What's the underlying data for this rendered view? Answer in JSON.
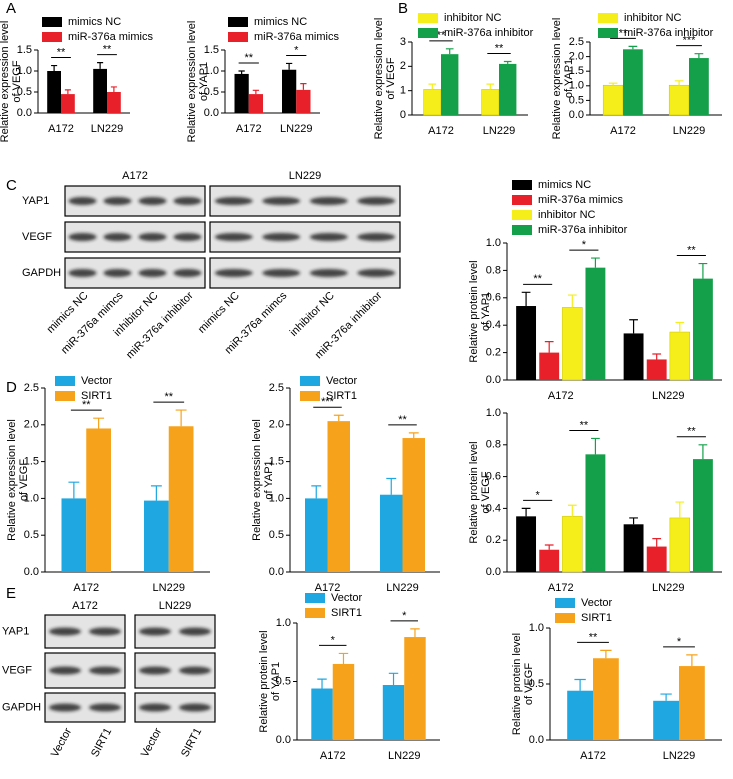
{
  "panels": [
    "A",
    "B",
    "C",
    "D",
    "E"
  ],
  "chart_data": [
    {
      "type": "bar",
      "ylabel": [
        "Relative expression level",
        "of VEGF"
      ],
      "categories": [
        "A172",
        "LN229"
      ],
      "series": [
        {
          "name": "mimics NC",
          "color": "#000000",
          "values": [
            1.0,
            1.05
          ],
          "errors": [
            0.13,
            0.15
          ]
        },
        {
          "name": "miR-376a mimics",
          "color": "#e8202a",
          "values": [
            0.45,
            0.5
          ],
          "errors": [
            0.1,
            0.12
          ]
        }
      ],
      "ylim": [
        0,
        1.5
      ],
      "yticks": [
        {
          "value": 0,
          "label": "0.0"
        },
        {
          "value": 0.5,
          "label": "0.5"
        },
        {
          "value": 1,
          "label": "1.0"
        },
        {
          "value": 1.5,
          "label": "1.5"
        }
      ],
      "significance": [
        [
          "**"
        ],
        [
          "**"
        ]
      ]
    },
    {
      "type": "bar",
      "ylabel": [
        "Relative expression level",
        "of YAP1"
      ],
      "categories": [
        "A172",
        "LN229"
      ],
      "series": [
        {
          "name": "mimics NC",
          "color": "#000000",
          "values": [
            0.93,
            1.03
          ],
          "errors": [
            0.07,
            0.15
          ]
        },
        {
          "name": "miR-376a mimics",
          "color": "#e8202a",
          "values": [
            0.45,
            0.55
          ],
          "errors": [
            0.09,
            0.15
          ]
        }
      ],
      "ylim": [
        0,
        1.5
      ],
      "yticks": [
        {
          "value": 0,
          "label": "0.0"
        },
        {
          "value": 0.5,
          "label": "0.5"
        },
        {
          "value": 1,
          "label": "1.0"
        },
        {
          "value": 1.5,
          "label": "1.5"
        }
      ],
      "significance": [
        [
          "**"
        ],
        [
          "*"
        ]
      ]
    },
    {
      "type": "bar",
      "ylabel": [
        "Relative expression level",
        "of VEGF"
      ],
      "categories": [
        "A172",
        "LN229"
      ],
      "series": [
        {
          "name": "inhibitor NC",
          "color": "#f5ee1b",
          "values": [
            1.05,
            1.05
          ],
          "errors": [
            0.22,
            0.22
          ]
        },
        {
          "name": "miR-376a inhibitor",
          "color": "#14a04a",
          "values": [
            2.5,
            2.1
          ],
          "errors": [
            0.22,
            0.1
          ]
        }
      ],
      "ylim": [
        0,
        3
      ],
      "yticks": [
        0,
        1,
        2,
        3
      ],
      "significance": [
        [
          "**"
        ],
        [
          "**"
        ]
      ]
    },
    {
      "type": "bar",
      "ylabel": [
        "Relative expression level",
        "of YAP1"
      ],
      "categories": [
        "A172",
        "LN229"
      ],
      "series": [
        {
          "name": "inhibitor NC",
          "color": "#f5ee1b",
          "values": [
            1.02,
            1.02
          ],
          "errors": [
            0.07,
            0.15
          ]
        },
        {
          "name": "miR-376a inhibitor",
          "color": "#14a04a",
          "values": [
            2.25,
            1.95
          ],
          "errors": [
            0.1,
            0.15
          ]
        }
      ],
      "ylim": [
        0,
        2.5
      ],
      "yticks": [
        {
          "value": 0,
          "label": "0.0"
        },
        {
          "value": 0.5,
          "label": "0.5"
        },
        {
          "value": 1,
          "label": "1.0"
        },
        {
          "value": 1.5,
          "label": "1.5"
        },
        {
          "value": 2,
          "label": "2.0"
        },
        {
          "value": 2.5,
          "label": "2.5"
        }
      ],
      "significance": [
        [
          "**"
        ],
        [
          "***"
        ]
      ]
    },
    {
      "type": "bar",
      "ylabel": [
        "Relative protein level",
        "of YAP1"
      ],
      "categories": [
        "A172",
        "LN229"
      ],
      "series": [
        {
          "name": "mimics NC",
          "color": "#000000",
          "values": [
            0.54,
            0.34
          ],
          "errors": [
            0.1,
            0.1
          ]
        },
        {
          "name": "miR-376a mimics",
          "color": "#e8202a",
          "values": [
            0.2,
            0.15
          ],
          "errors": [
            0.08,
            0.04
          ]
        },
        {
          "name": "inhibitor NC",
          "color": "#f5ee1b",
          "values": [
            0.53,
            0.35
          ],
          "errors": [
            0.09,
            0.07
          ]
        },
        {
          "name": "miR-376a inhibitor",
          "color": "#14a04a",
          "values": [
            0.82,
            0.74
          ],
          "errors": [
            0.07,
            0.11
          ]
        }
      ],
      "ylim": [
        0,
        1
      ],
      "yticks": [
        {
          "value": 0,
          "label": "0.0"
        },
        {
          "value": 0.2,
          "label": "0.2"
        },
        {
          "value": 0.4,
          "label": "0.4"
        },
        {
          "value": 0.6,
          "label": "0.6"
        },
        {
          "value": 0.8,
          "label": "0.8"
        },
        {
          "value": 1,
          "label": "1.0"
        }
      ],
      "significance": [
        [
          "**",
          "*"
        ],
        [
          null,
          "**"
        ]
      ]
    },
    {
      "type": "bar",
      "ylabel": [
        "Relative expression level",
        "of VEGF"
      ],
      "categories": [
        "A172",
        "LN229"
      ],
      "series": [
        {
          "name": "Vector",
          "color": "#1ea7e1",
          "values": [
            1.0,
            0.97
          ],
          "errors": [
            0.22,
            0.2
          ]
        },
        {
          "name": "SIRT1",
          "color": "#f7a21b",
          "values": [
            1.95,
            1.98
          ],
          "errors": [
            0.14,
            0.22
          ]
        }
      ],
      "ylim": [
        0,
        2.5
      ],
      "yticks": [
        {
          "value": 0,
          "label": "0.0"
        },
        {
          "value": 0.5,
          "label": "0.5"
        },
        {
          "value": 1,
          "label": "1.0"
        },
        {
          "value": 1.5,
          "label": "1.5"
        },
        {
          "value": 2,
          "label": "2.0"
        },
        {
          "value": 2.5,
          "label": "2.5"
        }
      ],
      "significance": [
        [
          "**"
        ],
        [
          "**"
        ]
      ]
    },
    {
      "type": "bar",
      "ylabel": [
        "Relative expression level",
        "of YAP1"
      ],
      "categories": [
        "A172",
        "LN229"
      ],
      "series": [
        {
          "name": "Vector",
          "color": "#1ea7e1",
          "values": [
            1.0,
            1.05
          ],
          "errors": [
            0.17,
            0.22
          ]
        },
        {
          "name": "SIRT1",
          "color": "#f7a21b",
          "values": [
            2.05,
            1.82
          ],
          "errors": [
            0.08,
            0.07
          ]
        }
      ],
      "ylim": [
        0,
        2.5
      ],
      "yticks": [
        {
          "value": 0,
          "label": "0.0"
        },
        {
          "value": 0.5,
          "label": "0.5"
        },
        {
          "value": 1,
          "label": "1.0"
        },
        {
          "value": 1.5,
          "label": "1.5"
        },
        {
          "value": 2,
          "label": "2.0"
        },
        {
          "value": 2.5,
          "label": "2.5"
        }
      ],
      "significance": [
        [
          "***"
        ],
        [
          "**"
        ]
      ]
    },
    {
      "type": "bar",
      "ylabel": [
        "Relative protein level",
        "of VEGF"
      ],
      "categories": [
        "A172",
        "LN229"
      ],
      "series": [
        {
          "name": "mimics NC",
          "color": "#000000",
          "values": [
            0.35,
            0.3
          ],
          "errors": [
            0.05,
            0.04
          ]
        },
        {
          "name": "miR-376a mimics",
          "color": "#e8202a",
          "values": [
            0.14,
            0.16
          ],
          "errors": [
            0.03,
            0.05
          ]
        },
        {
          "name": "inhibitor NC",
          "color": "#f5ee1b",
          "values": [
            0.35,
            0.34
          ],
          "errors": [
            0.07,
            0.1
          ]
        },
        {
          "name": "miR-376a inhibitor",
          "color": "#14a04a",
          "values": [
            0.74,
            0.71
          ],
          "errors": [
            0.1,
            0.09
          ]
        }
      ],
      "ylim": [
        0,
        1
      ],
      "yticks": [
        {
          "value": 0,
          "label": "0.0"
        },
        {
          "value": 0.2,
          "label": "0.2"
        },
        {
          "value": 0.4,
          "label": "0.4"
        },
        {
          "value": 0.6,
          "label": "0.6"
        },
        {
          "value": 0.8,
          "label": "0.8"
        },
        {
          "value": 1,
          "label": "1.0"
        }
      ],
      "significance": [
        [
          "*",
          "**"
        ],
        [
          null,
          "**"
        ]
      ]
    },
    {
      "type": "bar",
      "ylabel": [
        "Relative protein level",
        "of YAP1"
      ],
      "categories": [
        "A172",
        "LN229"
      ],
      "series": [
        {
          "name": "Vector",
          "color": "#1ea7e1",
          "values": [
            0.44,
            0.47
          ],
          "errors": [
            0.08,
            0.1
          ]
        },
        {
          "name": "SIRT1",
          "color": "#f7a21b",
          "values": [
            0.65,
            0.88
          ],
          "errors": [
            0.09,
            0.07
          ]
        }
      ],
      "ylim": [
        0,
        1
      ],
      "yticks": [
        {
          "value": 0,
          "label": "0.0"
        },
        {
          "value": 0.5,
          "label": "0.5"
        },
        {
          "value": 1,
          "label": "1.0"
        }
      ],
      "significance": [
        [
          "*"
        ],
        [
          "*"
        ]
      ]
    },
    {
      "type": "bar",
      "ylabel": [
        "Relative protein level",
        "of VEGF"
      ],
      "categories": [
        "A172",
        "LN229"
      ],
      "series": [
        {
          "name": "Vector",
          "color": "#1ea7e1",
          "values": [
            0.44,
            0.35
          ],
          "errors": [
            0.1,
            0.06
          ]
        },
        {
          "name": "SIRT1",
          "color": "#f7a21b",
          "values": [
            0.73,
            0.66
          ],
          "errors": [
            0.07,
            0.1
          ]
        }
      ],
      "ylim": [
        0,
        1
      ],
      "yticks": [
        {
          "value": 0,
          "label": "0.0"
        },
        {
          "value": 0.5,
          "label": "0.5"
        },
        {
          "value": 1,
          "label": "1.0"
        }
      ],
      "significance": [
        [
          "**"
        ],
        [
          "*"
        ]
      ]
    }
  ],
  "blots": [
    {
      "groups": [
        "A172",
        "LN229"
      ],
      "rows": [
        "YAP1",
        "VEGF",
        "GAPDH"
      ],
      "lanes": [
        [
          "mimics NC",
          "miR-376a mimcs",
          "inhibitor NC",
          "miR-376a inhibitor"
        ],
        [
          "mimics NC",
          "miR-376a mimcs",
          "inhibitor NC",
          "miR-376a inhibitor"
        ]
      ]
    },
    {
      "groups": [
        "A172",
        "LN229"
      ],
      "rows": [
        "YAP1",
        "VEGF",
        "GAPDH"
      ],
      "lanes": [
        [
          "Vector",
          "SIRT1"
        ],
        [
          "Vector",
          "SIRT1"
        ]
      ]
    }
  ]
}
